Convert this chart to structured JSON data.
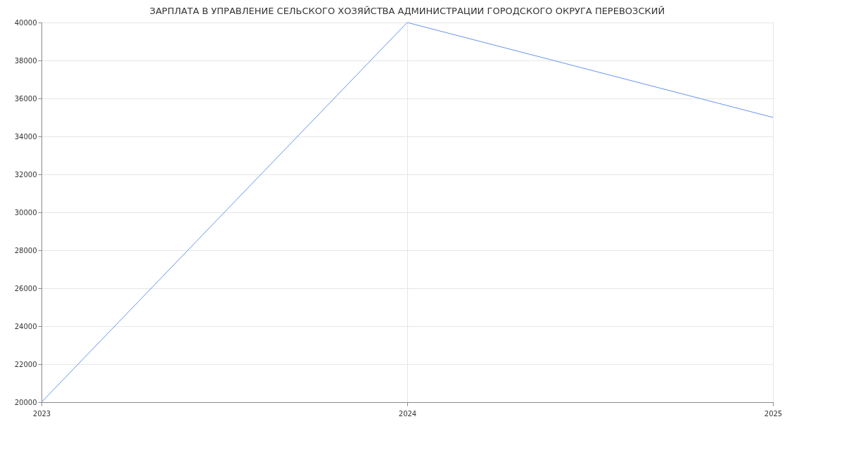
{
  "chart_data": {
    "type": "line",
    "title": "ЗАРПЛАТА В УПРАВЛЕНИЕ СЕЛЬСКОГО ХОЗЯЙСТВА АДМИНИСТРАЦИИ ГОРОДСКОГО ОКРУГА ПЕРЕВОЗСКИЙ",
    "x": [
      2023,
      2024,
      2025
    ],
    "series": [
      {
        "color": "#6495ed",
        "values": [
          20000,
          40000,
          35000
        ]
      }
    ],
    "xlim": [
      2023,
      2025
    ],
    "xticks": [
      2023,
      2024,
      2025
    ],
    "ylim": [
      20000,
      40000
    ],
    "yticks": [
      20000,
      22000,
      24000,
      26000,
      28000,
      30000,
      32000,
      34000,
      36000,
      38000,
      40000
    ],
    "grid": true,
    "marker": "none",
    "line_style": "solid"
  }
}
